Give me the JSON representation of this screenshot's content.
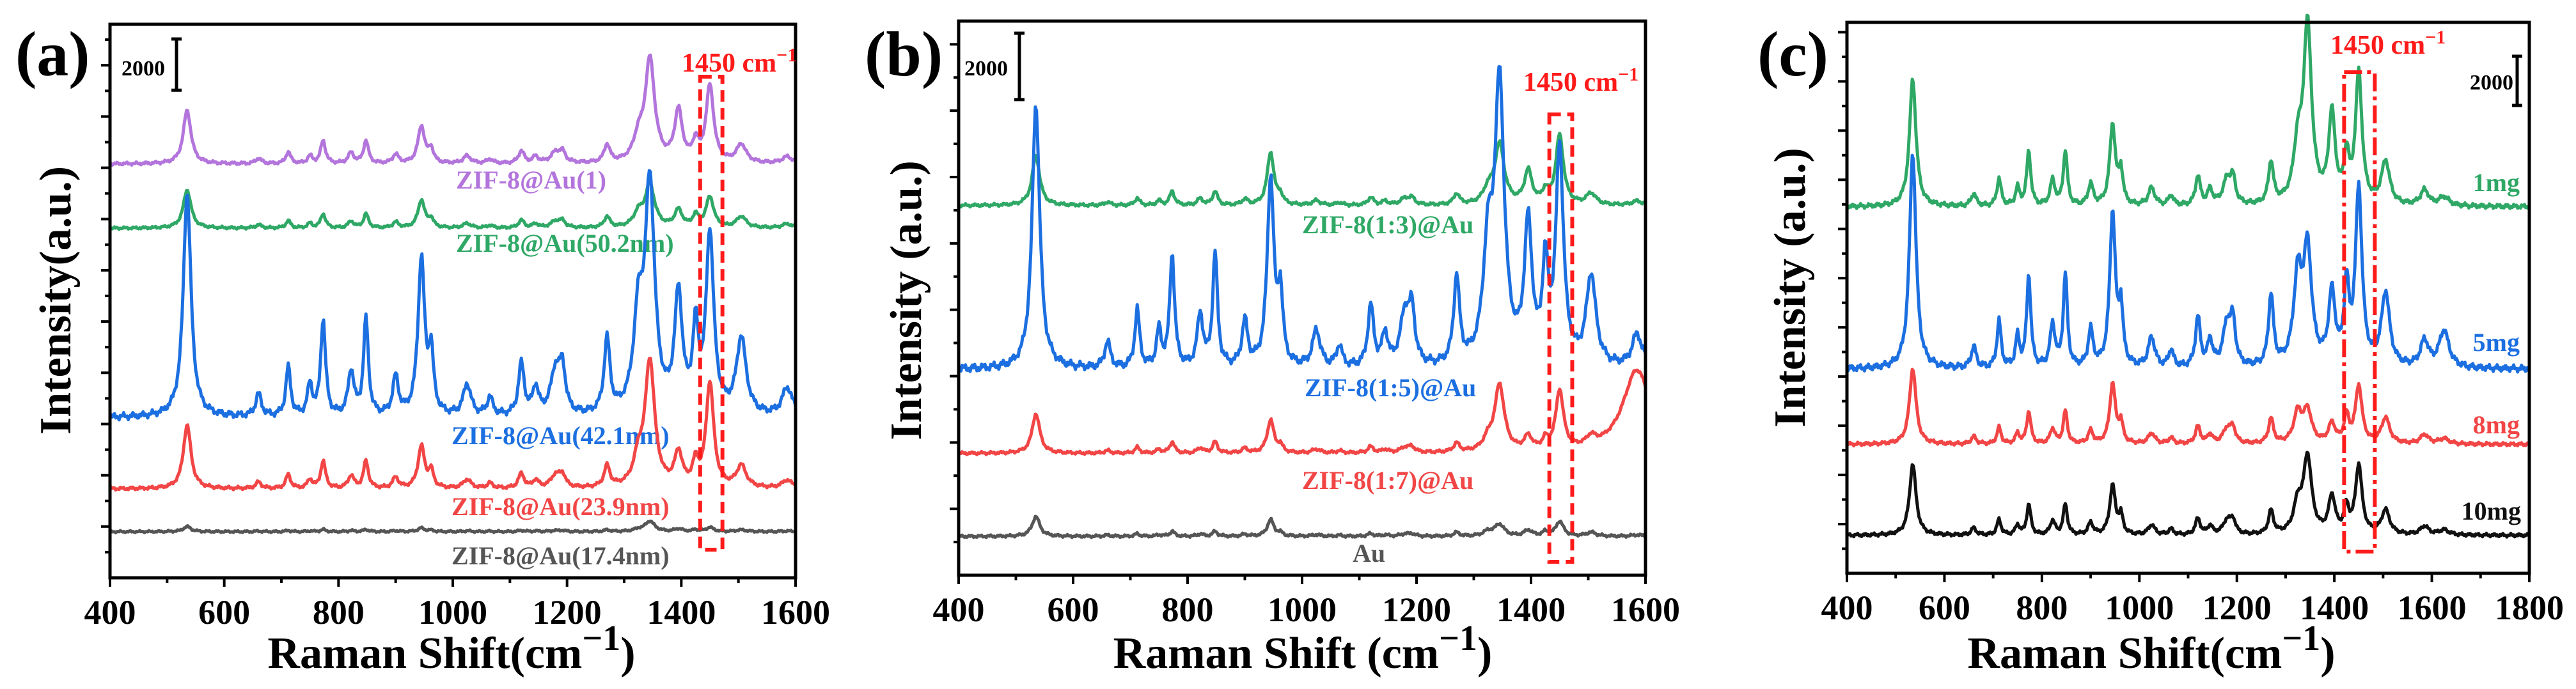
{
  "peak_positions": [
    535,
    660,
    712,
    750,
    773,
    822,
    848,
    900,
    945,
    962,
    1025,
    1065,
    1120,
    1145,
    1180,
    1192,
    1270,
    1325,
    1345,
    1395,
    1425,
    1450,
    1505,
    1585,
    1625
  ],
  "peak_widths": [
    8,
    6,
    5,
    5,
    5,
    6,
    5,
    6,
    7,
    5,
    8,
    6,
    6,
    6,
    10,
    6,
    6,
    10,
    10,
    8,
    6,
    8,
    10,
    10,
    12
  ],
  "template_heights": [
    1.0,
    0.1,
    0.22,
    0.14,
    0.43,
    0.2,
    0.43,
    0.17,
    0.7,
    0.26,
    0.14,
    0.08,
    0.23,
    0.12,
    0.2,
    0.18,
    0.33,
    0.4,
    1.0,
    0.52,
    0.35,
    0.8,
    0.34,
    0.12,
    0.07
  ],
  "chart_data": [
    {
      "type": "line",
      "panel_label": "(a)",
      "xlabel": "Raman Shift(cm",
      "xlabel_sup": "−1",
      "xlabel_end": ")",
      "ylabel": "Intensity(a.u.)",
      "xlim": [
        400,
        1600
      ],
      "xticks": [
        400,
        600,
        800,
        1000,
        1200,
        1400,
        1600
      ],
      "ylim": [
        0,
        21600
      ],
      "scale_bar": {
        "value": 2000,
        "label": "2000"
      },
      "annotation": {
        "text": "1450 cm",
        "sup": "−1",
        "x_range": [
          1433,
          1472
        ],
        "color": "#ff1a1a"
      },
      "series": [
        {
          "name": "ZIF-8@Au(1)",
          "color": "#b375dc",
          "baseline": 16150,
          "scale": 2100,
          "overrides": {
            "1345": 4000,
            "1450": 3000,
            "1395": 2000
          }
        },
        {
          "name": "ZIF-8@Au(50.2nm)",
          "color": "#2fa866",
          "baseline": 13640,
          "scale": 1300,
          "overrides": {
            "535": 1500,
            "1345": 1650,
            "1450": 1200,
            "945": 1100
          }
        },
        {
          "name": "ZIF-8@Au(42.1nm)",
          "color": "#1c6fe0",
          "baseline": 6250,
          "scale": 8800,
          "overrides": {}
        },
        {
          "name": "ZIF-8@Au(23.9nm)",
          "color": "#f24545",
          "baseline": 3470,
          "scale": 2500,
          "overrides": {
            "1345": 4900,
            "1450": 4100,
            "945": 1650
          }
        },
        {
          "name": "ZIF-8@Au(17.4nm)",
          "color": "#555555",
          "baseline": 1800,
          "scale": 200,
          "overrides": {
            "1345": 400
          }
        }
      ]
    },
    {
      "type": "line",
      "panel_label": "(b)",
      "xlabel": "Raman Shift (cm",
      "xlabel_sup": "−1",
      "xlabel_end": ")",
      "ylabel": "Intensity (a.u.)",
      "xlim": [
        400,
        1600
      ],
      "xticks": [
        400,
        600,
        800,
        1000,
        1200,
        1400,
        1600
      ],
      "ylim": [
        0,
        16700
      ],
      "scale_bar": {
        "value": 2000,
        "label": "2000"
      },
      "annotation": {
        "text": "1450 cm",
        "sup": "−1",
        "x_range": [
          1432,
          1472
        ],
        "color": "#ff1a1a"
      },
      "series": [
        {
          "name": "ZIF-8(1:3)@Au",
          "color": "#2fa866",
          "baseline": 11140,
          "scale": 1000,
          "overrides": {
            "535": 1500,
            "945": 1600,
            "1345": 1800,
            "1450": 2100,
            "1395": 1000
          }
        },
        {
          "name": "ZIF-8(1:5)@Au",
          "color": "#1c6fe0",
          "baseline": 6200,
          "scale": 8000,
          "overrides": {
            "1345": 8300,
            "1450": 6500,
            "945": 5700
          }
        },
        {
          "name": "ZIF-8(1:7)@Au",
          "color": "#f24545",
          "baseline": 3670,
          "scale": 800,
          "overrides": {
            "535": 1200,
            "1345": 2000,
            "1450": 1800,
            "1585": 2500,
            "945": 1000
          }
        },
        {
          "name": "Au",
          "color": "#555555",
          "baseline": 1170,
          "scale": 350,
          "overrides": {
            "535": 600,
            "945": 500,
            "1450": 450
          }
        }
      ]
    },
    {
      "type": "line",
      "panel_label": "(c)",
      "xlabel": "Raman Shift(cm",
      "xlabel_sup": "−1",
      "xlabel_end": ")",
      "ylabel": "Intensity (a.u.)",
      "xlim": [
        400,
        1800
      ],
      "xticks": [
        400,
        600,
        800,
        1000,
        1200,
        1400,
        1600,
        1800
      ],
      "ylim": [
        0,
        22400
      ],
      "scale_bar": {
        "value": 2000,
        "label": "2000"
      },
      "annotation": {
        "text": "1450 cm",
        "sup": "−1",
        "x_range": [
          1420,
          1483
        ],
        "color": "#ff1a1a"
      },
      "series": [
        {
          "name": "1mg",
          "color": "#2fa866",
          "baseline": 14900,
          "scale": 5200,
          "overrides": {
            "1345": 7200,
            "1450": 5300,
            "945": 3300,
            "1395": 3600
          }
        },
        {
          "name": "5mg",
          "color": "#1c6fe0",
          "baseline": 8300,
          "scale": 8800,
          "overrides": {
            "1345": 4600,
            "1450": 7200,
            "945": 6300,
            "1395": 2900,
            "1625": 1500
          }
        },
        {
          "name": "8mg",
          "color": "#f24545",
          "baseline": 5240,
          "scale": 3100,
          "overrides": {
            "945": 2450,
            "1450": 2350,
            "1345": 1300,
            "1395": 800
          }
        },
        {
          "name": "10mg",
          "color": "#111111",
          "baseline": 1540,
          "scale": 2900,
          "overrides": {
            "1345": 3100,
            "1450": 2800,
            "945": 2000
          }
        }
      ]
    }
  ]
}
